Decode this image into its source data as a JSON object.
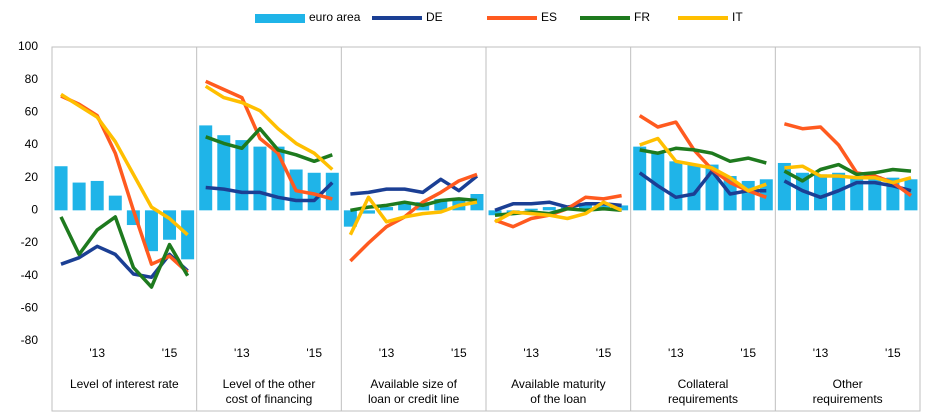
{
  "chart_data": {
    "type": "panel-bar-line",
    "series": [
      {
        "name": "euro area",
        "color": "#1fb4e8",
        "kind": "bar"
      },
      {
        "name": "DE",
        "color": "#1b3f94",
        "kind": "line"
      },
      {
        "name": "ES",
        "color": "#ff5a1f",
        "kind": "line"
      },
      {
        "name": "FR",
        "color": "#1e7a1e",
        "kind": "line"
      },
      {
        "name": "IT",
        "color": "#ffbf00",
        "kind": "line"
      }
    ],
    "ylim": [
      -80,
      100
    ],
    "yticks": [
      -80,
      -60,
      -40,
      -20,
      0,
      20,
      40,
      60,
      80,
      100
    ],
    "grid": false,
    "panels": [
      {
        "label": [
          "Level of interest rate"
        ],
        "categories": [
          null,
          null,
          "'13",
          null,
          null,
          null,
          "'15",
          null
        ],
        "values": [
          [
            27,
            17,
            18,
            9,
            -9,
            -25,
            -18,
            -30
          ],
          [
            -33,
            -29,
            -22,
            -27,
            -39,
            -41,
            -27,
            -37
          ],
          [
            70,
            65,
            58,
            35,
            0,
            -33,
            -28,
            -38
          ],
          [
            -4,
            -27,
            -12,
            -4,
            -35,
            -47,
            -21,
            -40
          ],
          [
            71,
            64,
            57,
            42,
            22,
            2,
            -5,
            -15
          ]
        ]
      },
      {
        "label": [
          "Level of the other",
          "cost of financing"
        ],
        "categories": [
          null,
          null,
          "'13",
          null,
          null,
          null,
          "'15",
          null
        ],
        "values": [
          [
            52,
            46,
            43,
            39,
            39,
            25,
            23,
            23
          ],
          [
            14,
            13,
            11,
            11,
            8,
            6,
            6,
            17
          ],
          [
            79,
            74,
            69,
            44,
            35,
            12,
            10,
            7
          ],
          [
            45,
            41,
            38,
            50,
            37,
            34,
            30,
            34
          ],
          [
            76,
            69,
            66,
            61,
            50,
            41,
            35,
            25
          ]
        ]
      },
      {
        "label": [
          "Available size of",
          "loan or credit line"
        ],
        "categories": [
          null,
          null,
          "'13",
          null,
          null,
          null,
          "'15",
          null
        ],
        "values": [
          [
            -10,
            -2,
            2,
            5,
            5,
            7,
            6,
            10
          ],
          [
            10,
            11,
            13,
            13,
            11,
            19,
            12,
            21
          ],
          [
            -31,
            -20,
            -10,
            -4,
            5,
            11,
            18,
            22
          ],
          [
            0,
            2,
            3,
            5,
            3,
            6,
            7,
            6
          ],
          [
            -15,
            8,
            -7,
            -4,
            -2,
            -1,
            3,
            5
          ]
        ]
      },
      {
        "label": [
          "Available maturity",
          "of the loan"
        ],
        "categories": [
          null,
          null,
          "'13",
          null,
          null,
          null,
          "'15",
          null
        ],
        "values": [
          [
            -3,
            -2,
            1,
            2,
            3,
            4,
            3,
            3
          ],
          [
            0,
            4,
            4,
            5,
            2,
            4,
            4,
            3
          ],
          [
            -6,
            -10,
            -5,
            -3,
            1,
            8,
            7,
            9
          ],
          [
            -3,
            -2,
            -1,
            -2,
            1,
            0,
            1,
            0
          ],
          [
            -7,
            -1,
            -2,
            -3,
            -5,
            -2,
            5,
            0
          ]
        ]
      },
      {
        "label": [
          "Collateral",
          "requirements"
        ],
        "categories": [
          null,
          null,
          "'13",
          null,
          null,
          null,
          "'15",
          null
        ],
        "values": [
          [
            39,
            36,
            30,
            28,
            28,
            21,
            18,
            19
          ],
          [
            23,
            15,
            8,
            10,
            24,
            10,
            12,
            12
          ],
          [
            58,
            51,
            54,
            37,
            25,
            17,
            12,
            8
          ],
          [
            37,
            35,
            38,
            37,
            35,
            30,
            32,
            29
          ],
          [
            40,
            44,
            30,
            28,
            26,
            20,
            12,
            16
          ]
        ]
      },
      {
        "label": [
          "Other",
          "requirements"
        ],
        "categories": [
          null,
          null,
          "'13",
          null,
          null,
          null,
          "'15",
          null
        ],
        "values": [
          [
            29,
            23,
            22,
            23,
            21,
            21,
            20,
            19
          ],
          [
            18,
            12,
            8,
            12,
            17,
            17,
            15,
            12
          ],
          [
            53,
            50,
            51,
            40,
            23,
            21,
            17,
            9
          ],
          [
            24,
            18,
            25,
            28,
            22,
            23,
            25,
            24
          ],
          [
            26,
            27,
            21,
            21,
            20,
            20,
            17,
            20
          ]
        ]
      }
    ]
  }
}
